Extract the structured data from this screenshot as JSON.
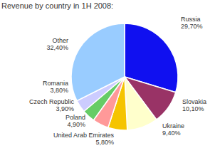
{
  "chart_data": {
    "type": "pie",
    "title": "Revenue by country in 1H 2008:",
    "categories": [
      "Russia",
      "Slovakia",
      "Ukraine",
      "United Arab Emirates",
      "Poland",
      "Czech Republic",
      "Romania",
      "Other"
    ],
    "values": [
      29.7,
      10.1,
      9.4,
      5.8,
      4.9,
      3.9,
      3.8,
      32.4
    ],
    "value_labels": [
      "29,70%",
      "10,10%",
      "9,40%",
      "5,80%",
      "4,90%",
      "3,90%",
      "3,80%",
      "32,40%"
    ],
    "colors": [
      "#1010f0",
      "#993366",
      "#ffffcc",
      "#f5c400",
      "#ff9999",
      "#66cc66",
      "#ccccff",
      "#99ccff"
    ],
    "data_labels": true
  }
}
